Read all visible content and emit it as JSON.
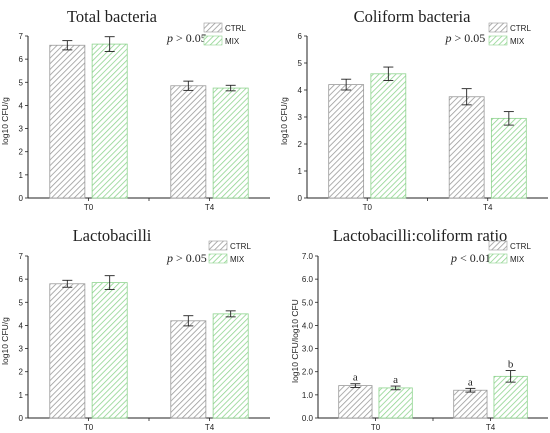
{
  "colors": {
    "ctrl": "#9a9a9a",
    "mix": "#8fd48f",
    "axis": "#222222"
  },
  "chart_data": [
    {
      "type": "bar",
      "title": "Total bacteria",
      "pvalue": {
        "label": "p",
        "rest": " > 0.05"
      },
      "ylabel": "log10 CFU/g",
      "ylim": [
        0,
        7
      ],
      "yticks": [
        "0",
        "1",
        "2",
        "3",
        "4",
        "5",
        "6",
        "7"
      ],
      "categories": [
        "T0",
        "T4"
      ],
      "legend": "top-right",
      "series": [
        {
          "name": "CTRL",
          "values": [
            6.6,
            4.85
          ],
          "errors": [
            0.2,
            0.2
          ]
        },
        {
          "name": "MIX",
          "values": [
            6.65,
            4.75
          ],
          "errors": [
            0.32,
            0.12
          ]
        }
      ],
      "annotations": [
        [
          "",
          ""
        ],
        [
          "",
          ""
        ]
      ]
    },
    {
      "type": "bar",
      "title": "Coliform bacteria",
      "pvalue": {
        "label": "p",
        "rest": " > 0.05"
      },
      "ylabel": "log10 CFU/g",
      "ylim": [
        0,
        6
      ],
      "yticks": [
        "0",
        "1",
        "2",
        "3",
        "4",
        "5",
        "6"
      ],
      "categories": [
        "T0",
        "T4"
      ],
      "legend": "top-right",
      "series": [
        {
          "name": "CTRL",
          "values": [
            4.2,
            3.75
          ],
          "errors": [
            0.2,
            0.3
          ]
        },
        {
          "name": "MIX",
          "values": [
            4.6,
            2.95
          ],
          "errors": [
            0.25,
            0.25
          ]
        }
      ],
      "annotations": [
        [
          "",
          ""
        ],
        [
          "",
          ""
        ]
      ]
    },
    {
      "type": "bar",
      "title": "Lactobacilli",
      "pvalue": {
        "label": "p",
        "rest": " > 0.05"
      },
      "ylabel": "log10 CFU/g",
      "ylim": [
        0,
        7
      ],
      "yticks": [
        "0",
        "1",
        "2",
        "3",
        "4",
        "5",
        "6",
        "7"
      ],
      "categories": [
        "T0",
        "T4"
      ],
      "legend": "top-right",
      "series": [
        {
          "name": "CTRL",
          "values": [
            5.8,
            4.2
          ],
          "errors": [
            0.15,
            0.22
          ]
        },
        {
          "name": "MIX",
          "values": [
            5.85,
            4.5
          ],
          "errors": [
            0.3,
            0.13
          ]
        }
      ],
      "annotations": [
        [
          "",
          ""
        ],
        [
          "",
          ""
        ]
      ]
    },
    {
      "type": "bar",
      "title": "Lactobacilli:coliform ratio",
      "pvalue": {
        "label": "p",
        "rest": " < 0.01"
      },
      "ylabel": "log10 CFU/log10 CFU",
      "ylim": [
        0,
        7
      ],
      "yticks": [
        "0.0",
        "1.0",
        "2.0",
        "3.0",
        "4.0",
        "5.0",
        "6.0",
        "7.0"
      ],
      "categories": [
        "T0",
        "T4"
      ],
      "legend": "top-right",
      "series": [
        {
          "name": "CTRL",
          "values": [
            1.4,
            1.2
          ],
          "errors": [
            0.08,
            0.08
          ]
        },
        {
          "name": "MIX",
          "values": [
            1.3,
            1.8
          ],
          "errors": [
            0.08,
            0.25
          ]
        }
      ],
      "annotations": [
        [
          "a",
          "a"
        ],
        [
          "a",
          "b"
        ]
      ]
    }
  ]
}
